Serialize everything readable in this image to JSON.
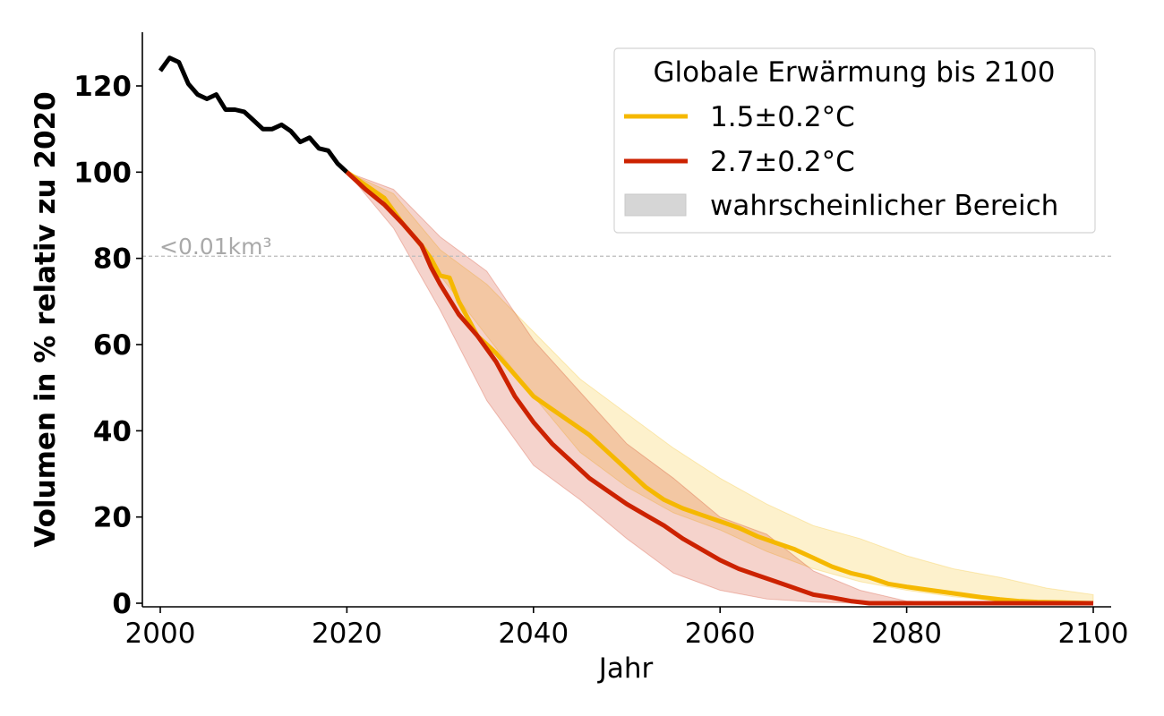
{
  "chart_data": {
    "type": "line",
    "xlabel": "Jahr",
    "ylabel": "Volumen in % relativ zu 2020",
    "xlim": [
      1998,
      2102
    ],
    "ylim": [
      0,
      132
    ],
    "xticks": [
      2000,
      2020,
      2040,
      2060,
      2080,
      2100
    ],
    "yticks": [
      0,
      20,
      40,
      60,
      80,
      100,
      120
    ],
    "grid": false,
    "legend": {
      "title": "Globale Erwärmung bis 2100",
      "placement": "top-right",
      "entries": [
        "1.5±0.2°C",
        "2.7±0.2°C",
        "wahrscheinlicher Bereich"
      ]
    },
    "reference_line": {
      "y": 80.5,
      "style": "dashed",
      "color": "#bbbbbb",
      "label": "<0.01km³"
    },
    "series": [
      {
        "key": "historical",
        "color": "#000000",
        "x": [
          2000,
          2001,
          2002,
          2003,
          2004,
          2005,
          2006,
          2007,
          2008,
          2009,
          2010,
          2011,
          2012,
          2013,
          2014,
          2015,
          2016,
          2017,
          2018,
          2019,
          2020
        ],
        "y": [
          123.5,
          126.5,
          125.5,
          120.5,
          118,
          117,
          118,
          114.5,
          114.5,
          114,
          112,
          110,
          110,
          111,
          109.5,
          107,
          108,
          105.5,
          105,
          102,
          100
        ]
      },
      {
        "name": "1.5±0.2°C",
        "color": "#F5B800",
        "x": [
          2020,
          2022,
          2024,
          2026,
          2028,
          2029,
          2030,
          2031,
          2032,
          2034,
          2036,
          2038,
          2040,
          2042,
          2044,
          2046,
          2048,
          2050,
          2052,
          2054,
          2056,
          2058,
          2060,
          2062,
          2064,
          2066,
          2068,
          2070,
          2072,
          2074,
          2076,
          2078,
          2080,
          2082,
          2084,
          2086,
          2088,
          2090,
          2092,
          2094,
          2096,
          2098,
          2100
        ],
        "y": [
          100,
          97,
          94,
          88,
          83,
          80,
          76,
          75.5,
          70,
          62,
          58,
          53,
          48,
          45,
          42,
          39,
          35,
          31,
          27,
          24,
          22,
          20.5,
          19,
          17.5,
          15.5,
          14,
          12.5,
          10.5,
          8.5,
          7,
          6,
          4.5,
          3.8,
          3.2,
          2.6,
          2,
          1.4,
          0.9,
          0.5,
          0.3,
          0.2,
          0.1,
          0
        ]
      },
      {
        "name": "2.7±0.2°C",
        "color": "#CC2200",
        "x": [
          2020,
          2022,
          2024,
          2026,
          2028,
          2029,
          2030,
          2032,
          2034,
          2036,
          2038,
          2040,
          2042,
          2044,
          2046,
          2048,
          2050,
          2052,
          2054,
          2056,
          2058,
          2060,
          2062,
          2064,
          2066,
          2068,
          2070,
          2072,
          2074,
          2076,
          2078,
          2080,
          2085,
          2090,
          2095,
          2100
        ],
        "y": [
          100,
          96,
          92.5,
          88,
          83,
          78,
          74,
          67,
          62,
          56,
          48,
          42,
          37,
          33,
          29,
          26,
          23,
          20.5,
          18,
          15,
          12.5,
          10,
          8,
          6.5,
          5,
          3.5,
          2,
          1.3,
          0.5,
          0,
          0,
          0,
          0,
          0,
          0,
          0
        ]
      }
    ],
    "bands": [
      {
        "color": "#F5B800",
        "x": [
          2020,
          2025,
          2030,
          2035,
          2040,
          2045,
          2050,
          2055,
          2060,
          2065,
          2070,
          2075,
          2080,
          2085,
          2090,
          2095,
          2100
        ],
        "upper": [
          100,
          95,
          82,
          74,
          63,
          52,
          44,
          36,
          29,
          23,
          18,
          15,
          11,
          8,
          6,
          3.5,
          2
        ],
        "lower": [
          100,
          91,
          76,
          62,
          48,
          35,
          27,
          21,
          17,
          12,
          8,
          5,
          3,
          1.5,
          0.5,
          0,
          0
        ]
      },
      {
        "color": "#CC2200",
        "x": [
          2020,
          2025,
          2030,
          2035,
          2040,
          2045,
          2050,
          2055,
          2060,
          2065,
          2070,
          2075,
          2080,
          2085,
          2090,
          2095,
          2100
        ],
        "upper": [
          100,
          96,
          85,
          77,
          61,
          49,
          37,
          29,
          20,
          16,
          7.5,
          3,
          0.5,
          0,
          0,
          0,
          0
        ],
        "lower": [
          100,
          87,
          68,
          47,
          32,
          24,
          15,
          7,
          3,
          1,
          0.3,
          0,
          0,
          0,
          0,
          0,
          0
        ]
      }
    ]
  }
}
